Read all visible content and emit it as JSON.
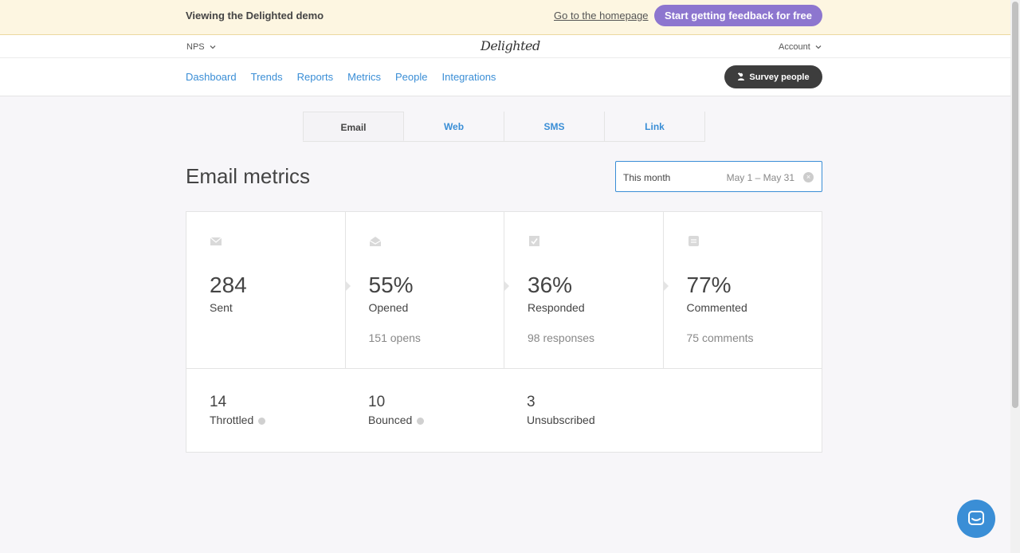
{
  "banner": {
    "text": "Viewing the Delighted demo",
    "homepage_link": "Go to the homepage",
    "cta": "Start getting feedback for free"
  },
  "topnav": {
    "survey_type": "NPS",
    "logo": "Delighted",
    "account": "Account"
  },
  "mainnav": {
    "items": [
      "Dashboard",
      "Trends",
      "Reports",
      "Metrics",
      "People",
      "Integrations"
    ],
    "survey_button": "Survey people"
  },
  "tabs": [
    "Email",
    "Web",
    "SMS",
    "Link"
  ],
  "active_tab": "Email",
  "page_title": "Email metrics",
  "date_filter": {
    "label": "This month",
    "range": "May 1 – May 31"
  },
  "stats": [
    {
      "icon": "envelope-icon",
      "value": "284",
      "label": "Sent",
      "sub": ""
    },
    {
      "icon": "open-envelope-icon",
      "value": "55%",
      "label": "Opened",
      "sub": "151 opens"
    },
    {
      "icon": "checkbox-icon",
      "value": "36%",
      "label": "Responded",
      "sub": "98 responses"
    },
    {
      "icon": "comment-icon",
      "value": "77%",
      "label": "Commented",
      "sub": "75 comments"
    }
  ],
  "secondary": [
    {
      "value": "14",
      "label": "Throttled",
      "info": true
    },
    {
      "value": "10",
      "label": "Bounced",
      "info": true
    },
    {
      "value": "3",
      "label": "Unsubscribed",
      "info": false
    }
  ],
  "colors": {
    "accent": "#3a8ed6",
    "cta": "#8d76cf",
    "banner_bg": "#fdf6e1"
  }
}
